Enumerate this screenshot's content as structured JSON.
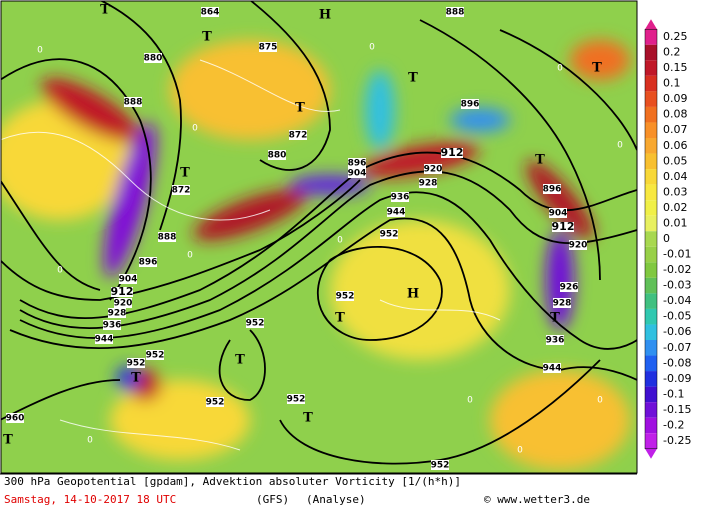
{
  "map": {
    "contour_labels": [
      "864",
      "888",
      "880",
      "888",
      "872",
      "888",
      "896",
      "904",
      "912",
      "920",
      "928",
      "936",
      "944",
      "875",
      "872",
      "880",
      "896",
      "904",
      "912",
      "920",
      "928",
      "936",
      "944",
      "952",
      "896",
      "896",
      "904",
      "912",
      "920",
      "926",
      "928",
      "936",
      "944",
      "952",
      "952",
      "952",
      "952",
      "952",
      "952",
      "960",
      "952"
    ],
    "markers": [
      "T",
      "T",
      "T",
      "T",
      "T",
      "T",
      "T",
      "T",
      "T",
      "T",
      "T",
      "T",
      "T",
      "H",
      "H"
    ],
    "zero_labels": [
      "0",
      "0",
      "0",
      "0",
      "0",
      "0",
      "0",
      "0",
      "0",
      "0",
      "0",
      "0"
    ]
  },
  "colorbar": {
    "levels": [
      0.25,
      0.2,
      0.15,
      0.1,
      0.09,
      0.08,
      0.07,
      0.06,
      0.05,
      0.04,
      0.03,
      0.02,
      0.01,
      0,
      -0.01,
      -0.02,
      -0.03,
      -0.04,
      -0.05,
      -0.06,
      -0.07,
      -0.08,
      -0.09,
      -0.1,
      -0.15,
      -0.2,
      -0.25
    ],
    "colors": [
      "#e0208c",
      "#a8102a",
      "#c01828",
      "#d83020",
      "#e85020",
      "#f07020",
      "#f89028",
      "#f8a830",
      "#f8c030",
      "#f8d838",
      "#f8e840",
      "#f0f048",
      "#e8f060",
      "#a8d850",
      "#98d048",
      "#80c840",
      "#60c058",
      "#40c080",
      "#30c8b0",
      "#30c0e0",
      "#3090f0",
      "#2060f0",
      "#2030e0",
      "#4010d0",
      "#7010d8",
      "#a010e0",
      "#c020e8"
    ]
  },
  "footer": {
    "line1": "300 hPa Geopotential [gpdam], Advektion absoluter Vorticity [1/(h*h)]",
    "date": "Samstag, 14-10-2017  18 UTC",
    "model": "(GFS)",
    "run": "(Analyse)",
    "credit": "© www.wetter3.de"
  }
}
